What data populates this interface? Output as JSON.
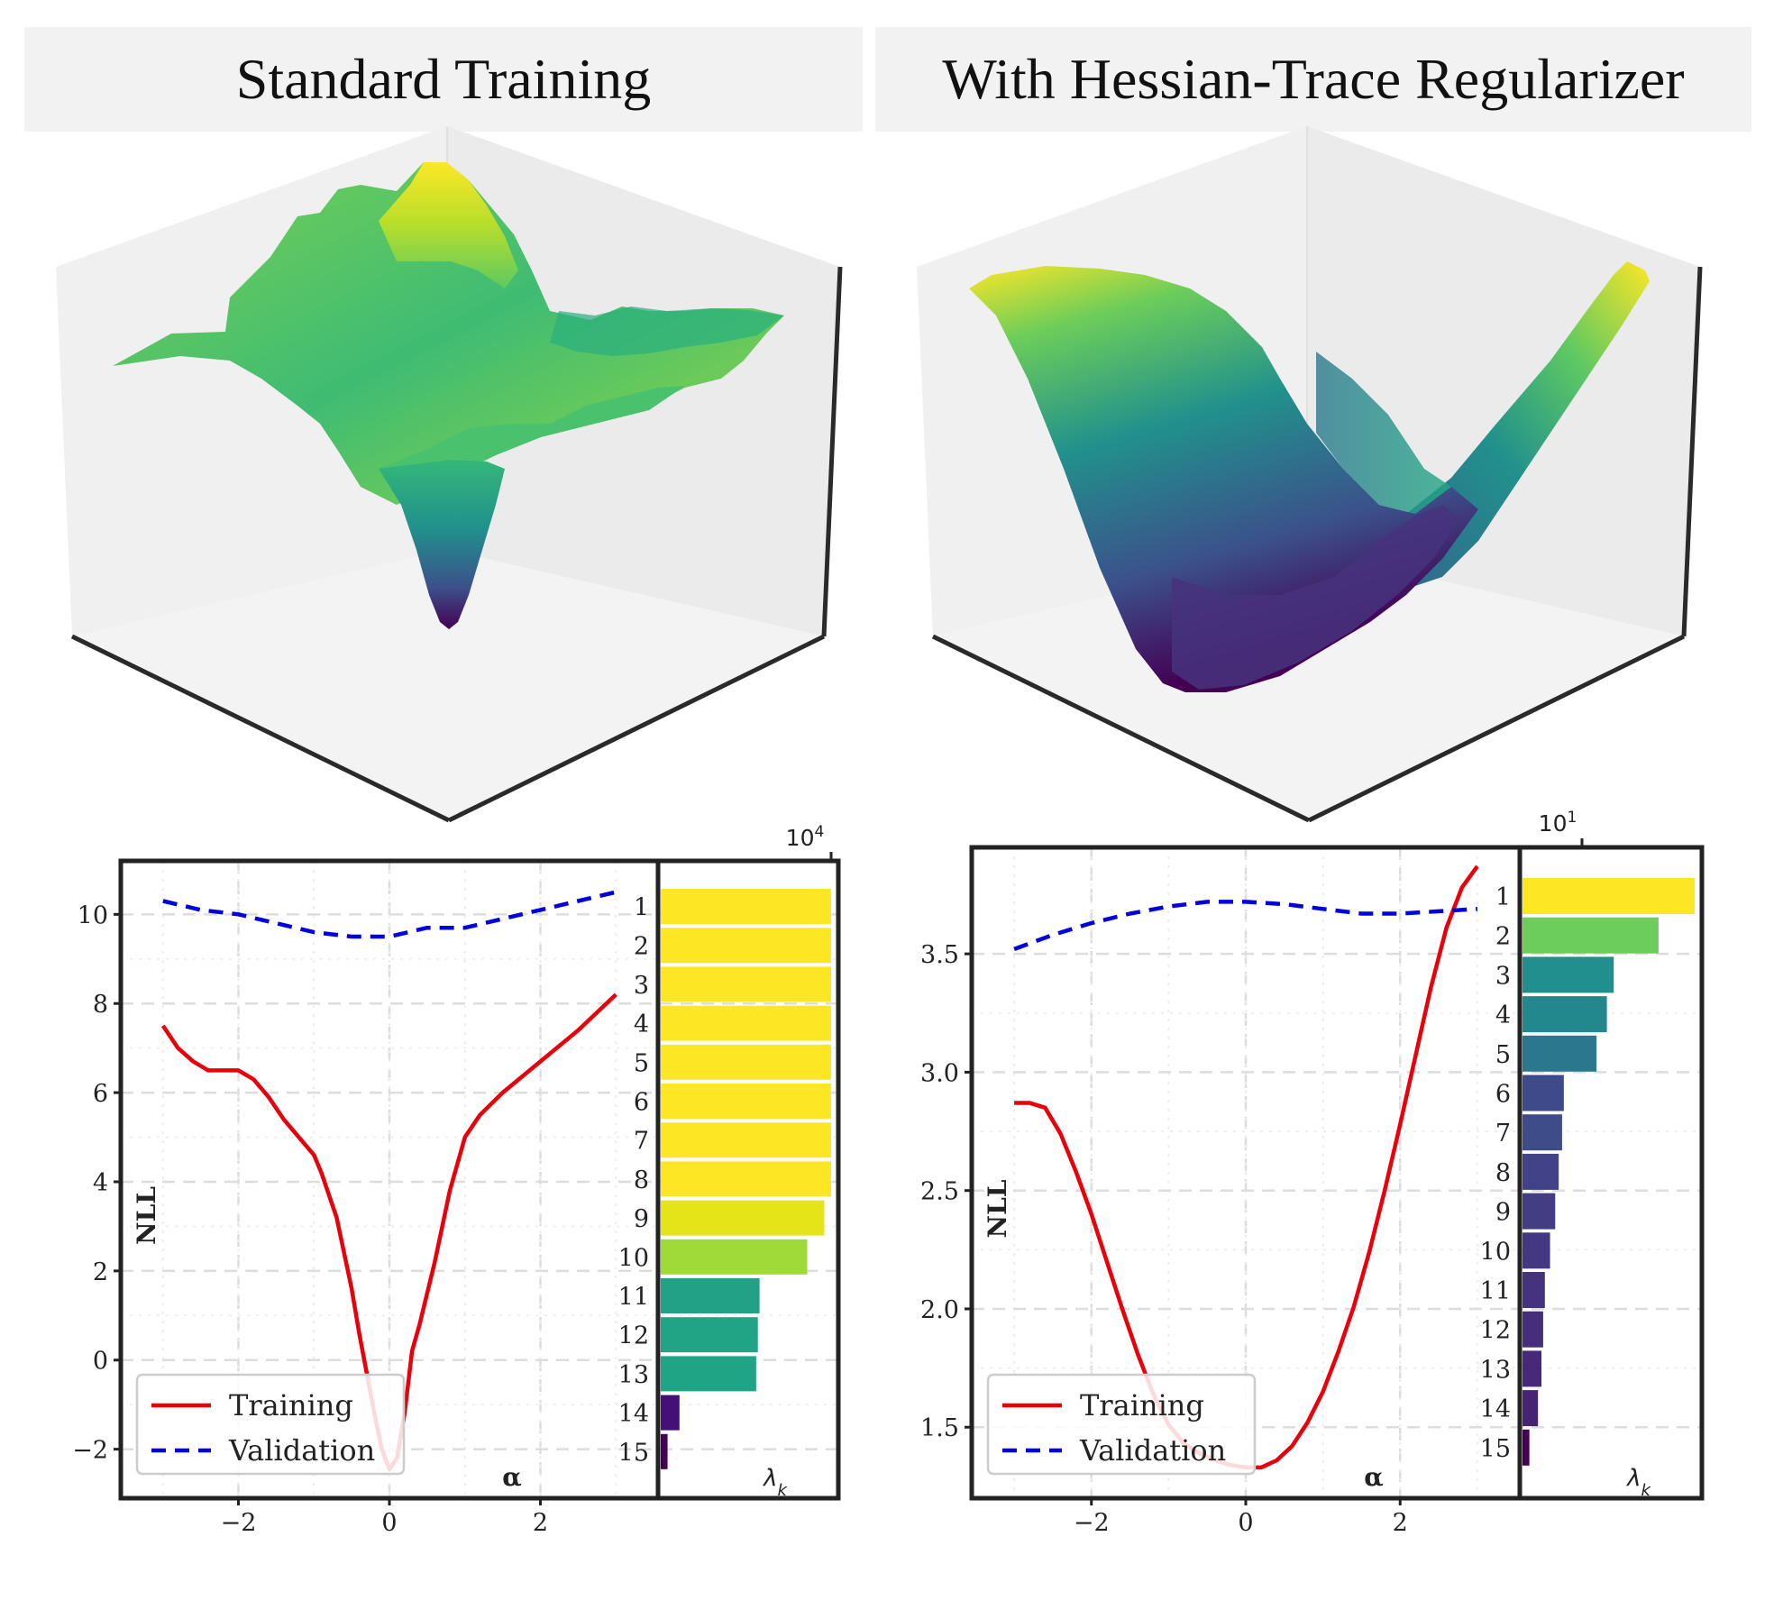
{
  "panels": {
    "left_title": "Standard Training",
    "right_title": "With Hessian-Trace Regularizer"
  },
  "colors": {
    "training": "#e8000b",
    "validation": "#0000e0",
    "panel_bg": "#f2f2f2"
  },
  "chart_data": [
    {
      "type": "surface",
      "panel": "left",
      "description_visible": "rugged 3D loss landscape, viridis colormap, single sharp minimum"
    },
    {
      "type": "surface",
      "panel": "right",
      "description_visible": "smooth 3D loss landscape, viridis colormap, wide valley"
    },
    {
      "type": "line",
      "panel": "left",
      "xlabel": "α",
      "ylabel": "NLL",
      "xlim": [
        -3.2,
        3.2
      ],
      "ylim": [
        -3.1,
        11.2
      ],
      "xticks": [
        "−2",
        "0",
        "2"
      ],
      "xtick_values": [
        -2,
        0,
        2
      ],
      "yticks": [
        "−2",
        "0",
        "2",
        "4",
        "6",
        "8",
        "10"
      ],
      "ytick_values": [
        -2,
        0,
        2,
        4,
        6,
        8,
        10
      ],
      "grid": true,
      "legend": "bottom-left",
      "series": [
        {
          "name": "Training",
          "style": "solid",
          "x": [
            -3.0,
            -2.8,
            -2.6,
            -2.4,
            -2.2,
            -2.0,
            -1.8,
            -1.6,
            -1.4,
            -1.2,
            -1.0,
            -0.9,
            -0.7,
            -0.5,
            -0.4,
            -0.3,
            -0.2,
            -0.1,
            0.0,
            0.1,
            0.2,
            0.3,
            0.4,
            0.6,
            0.8,
            1.0,
            1.2,
            1.5,
            2.0,
            2.5,
            3.0
          ],
          "y": [
            7.5,
            7.0,
            6.7,
            6.5,
            6.5,
            6.5,
            6.3,
            5.9,
            5.4,
            5.0,
            4.6,
            4.2,
            3.2,
            1.6,
            0.6,
            -0.3,
            -1.2,
            -2.0,
            -2.45,
            -2.2,
            -1.2,
            0.2,
            0.8,
            2.2,
            3.8,
            5.0,
            5.5,
            6.0,
            6.7,
            7.4,
            8.2
          ]
        },
        {
          "name": "Validation",
          "style": "dashed",
          "x": [
            -3.0,
            -2.5,
            -2.0,
            -1.5,
            -1.0,
            -0.5,
            0.0,
            0.5,
            1.0,
            1.5,
            2.0,
            2.5,
            3.0
          ],
          "y": [
            10.3,
            10.1,
            10.0,
            9.8,
            9.6,
            9.5,
            9.5,
            9.7,
            9.7,
            9.9,
            10.1,
            10.3,
            10.5
          ]
        }
      ]
    },
    {
      "type": "bar",
      "panel": "left",
      "orientation": "horizontal",
      "xlabel": "λ_k",
      "xscale": "log",
      "x_offset_label": "10",
      "x_offset_exponent": "4",
      "categories": [
        "1",
        "2",
        "3",
        "4",
        "5",
        "6",
        "7",
        "8",
        "9",
        "10",
        "11",
        "12",
        "13",
        "14",
        "15"
      ],
      "values": [
        1.0,
        1.0,
        1.0,
        1.0,
        1.0,
        1.0,
        1.0,
        1.0,
        0.96,
        0.86,
        0.58,
        0.57,
        0.56,
        0.11,
        0.04
      ],
      "value_unit": "relative length",
      "colors": [
        "#fde725",
        "#fde725",
        "#fde725",
        "#fde725",
        "#fde725",
        "#fde725",
        "#fde725",
        "#fde725",
        "#e5e419",
        "#a0da39",
        "#22a187",
        "#21a386",
        "#20a486",
        "#440f76",
        "#440154"
      ]
    },
    {
      "type": "line",
      "panel": "right",
      "xlabel": "α",
      "ylabel": "NLL",
      "xlim": [
        -3.2,
        3.2
      ],
      "ylim": [
        1.2,
        3.95
      ],
      "xticks": [
        "−2",
        "0",
        "2"
      ],
      "xtick_values": [
        -2,
        0,
        2
      ],
      "yticks": [
        "1.5",
        "2.0",
        "2.5",
        "3.0",
        "3.5"
      ],
      "ytick_values": [
        1.5,
        2.0,
        2.5,
        3.0,
        3.5
      ],
      "grid": true,
      "legend": "bottom-left",
      "series": [
        {
          "name": "Training",
          "style": "solid",
          "x": [
            -3.0,
            -2.8,
            -2.6,
            -2.4,
            -2.2,
            -2.0,
            -1.8,
            -1.6,
            -1.4,
            -1.2,
            -1.0,
            -0.8,
            -0.6,
            -0.4,
            -0.2,
            0.0,
            0.2,
            0.4,
            0.6,
            0.8,
            1.0,
            1.2,
            1.4,
            1.6,
            1.8,
            2.0,
            2.2,
            2.4,
            2.6,
            2.8,
            3.0
          ],
          "y": [
            2.87,
            2.87,
            2.85,
            2.74,
            2.58,
            2.4,
            2.2,
            2.0,
            1.81,
            1.64,
            1.51,
            1.43,
            1.39,
            1.36,
            1.34,
            1.33,
            1.33,
            1.36,
            1.42,
            1.52,
            1.65,
            1.82,
            2.01,
            2.24,
            2.5,
            2.78,
            3.07,
            3.36,
            3.61,
            3.78,
            3.87
          ]
        },
        {
          "name": "Validation",
          "style": "dashed",
          "x": [
            -3.0,
            -2.5,
            -2.0,
            -1.5,
            -1.0,
            -0.5,
            0.0,
            0.5,
            1.0,
            1.5,
            2.0,
            2.5,
            3.0
          ],
          "y": [
            3.52,
            3.58,
            3.63,
            3.67,
            3.7,
            3.72,
            3.72,
            3.71,
            3.69,
            3.67,
            3.67,
            3.68,
            3.69
          ]
        }
      ]
    },
    {
      "type": "bar",
      "panel": "right",
      "orientation": "horizontal",
      "xlabel": "λ_k",
      "xscale": "log",
      "x_offset_label": "10",
      "x_offset_exponent": "1",
      "categories": [
        "1",
        "2",
        "3",
        "4",
        "5",
        "6",
        "7",
        "8",
        "9",
        "10",
        "11",
        "12",
        "13",
        "14",
        "15"
      ],
      "values": [
        1.0,
        0.79,
        0.53,
        0.49,
        0.43,
        0.24,
        0.23,
        0.21,
        0.19,
        0.16,
        0.13,
        0.12,
        0.11,
        0.09,
        0.04
      ],
      "value_unit": "relative length",
      "colors": [
        "#fde725",
        "#6ccd5a",
        "#218f8d",
        "#23888e",
        "#2a778e",
        "#3e4a89",
        "#3e4c8a",
        "#414287",
        "#433d84",
        "#453882",
        "#46337f",
        "#472e7c",
        "#482878",
        "#482273",
        "#440154"
      ]
    }
  ],
  "legend_labels": {
    "training": "Training",
    "validation": "Validation"
  },
  "axis_labels": {
    "alpha": "α",
    "nll": "NLL",
    "lambda": "λ",
    "lambda_sub": "k"
  },
  "surface_colors": {
    "viridis_low": "#440154",
    "viridis_mid": "#21918c",
    "viridis_high": "#fde725"
  }
}
